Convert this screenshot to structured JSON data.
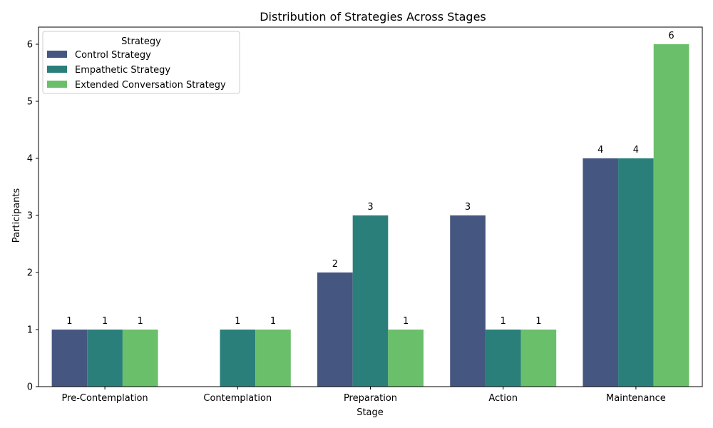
{
  "chart_data": {
    "type": "bar",
    "title": "Distribution of Strategies Across Stages",
    "xlabel": "Stage",
    "ylabel": "Participants",
    "categories": [
      "Pre-Contemplation",
      "Contemplation",
      "Preparation",
      "Action",
      "Maintenance"
    ],
    "series": [
      {
        "name": "Control Strategy",
        "color": "#455681",
        "values": [
          1,
          0,
          2,
          3,
          4
        ]
      },
      {
        "name": "Empathetic Strategy",
        "color": "#2b7f7b",
        "values": [
          1,
          1,
          3,
          1,
          4
        ]
      },
      {
        "name": "Extended Conversation Strategy",
        "color": "#6abf6a",
        "values": [
          1,
          1,
          1,
          1,
          6
        ]
      }
    ],
    "yticks": [
      0,
      1,
      2,
      3,
      4,
      5,
      6
    ],
    "ylim": [
      0,
      6.3
    ],
    "grid": false,
    "legend": {
      "title": "Strategy",
      "placement": "top-left"
    }
  }
}
